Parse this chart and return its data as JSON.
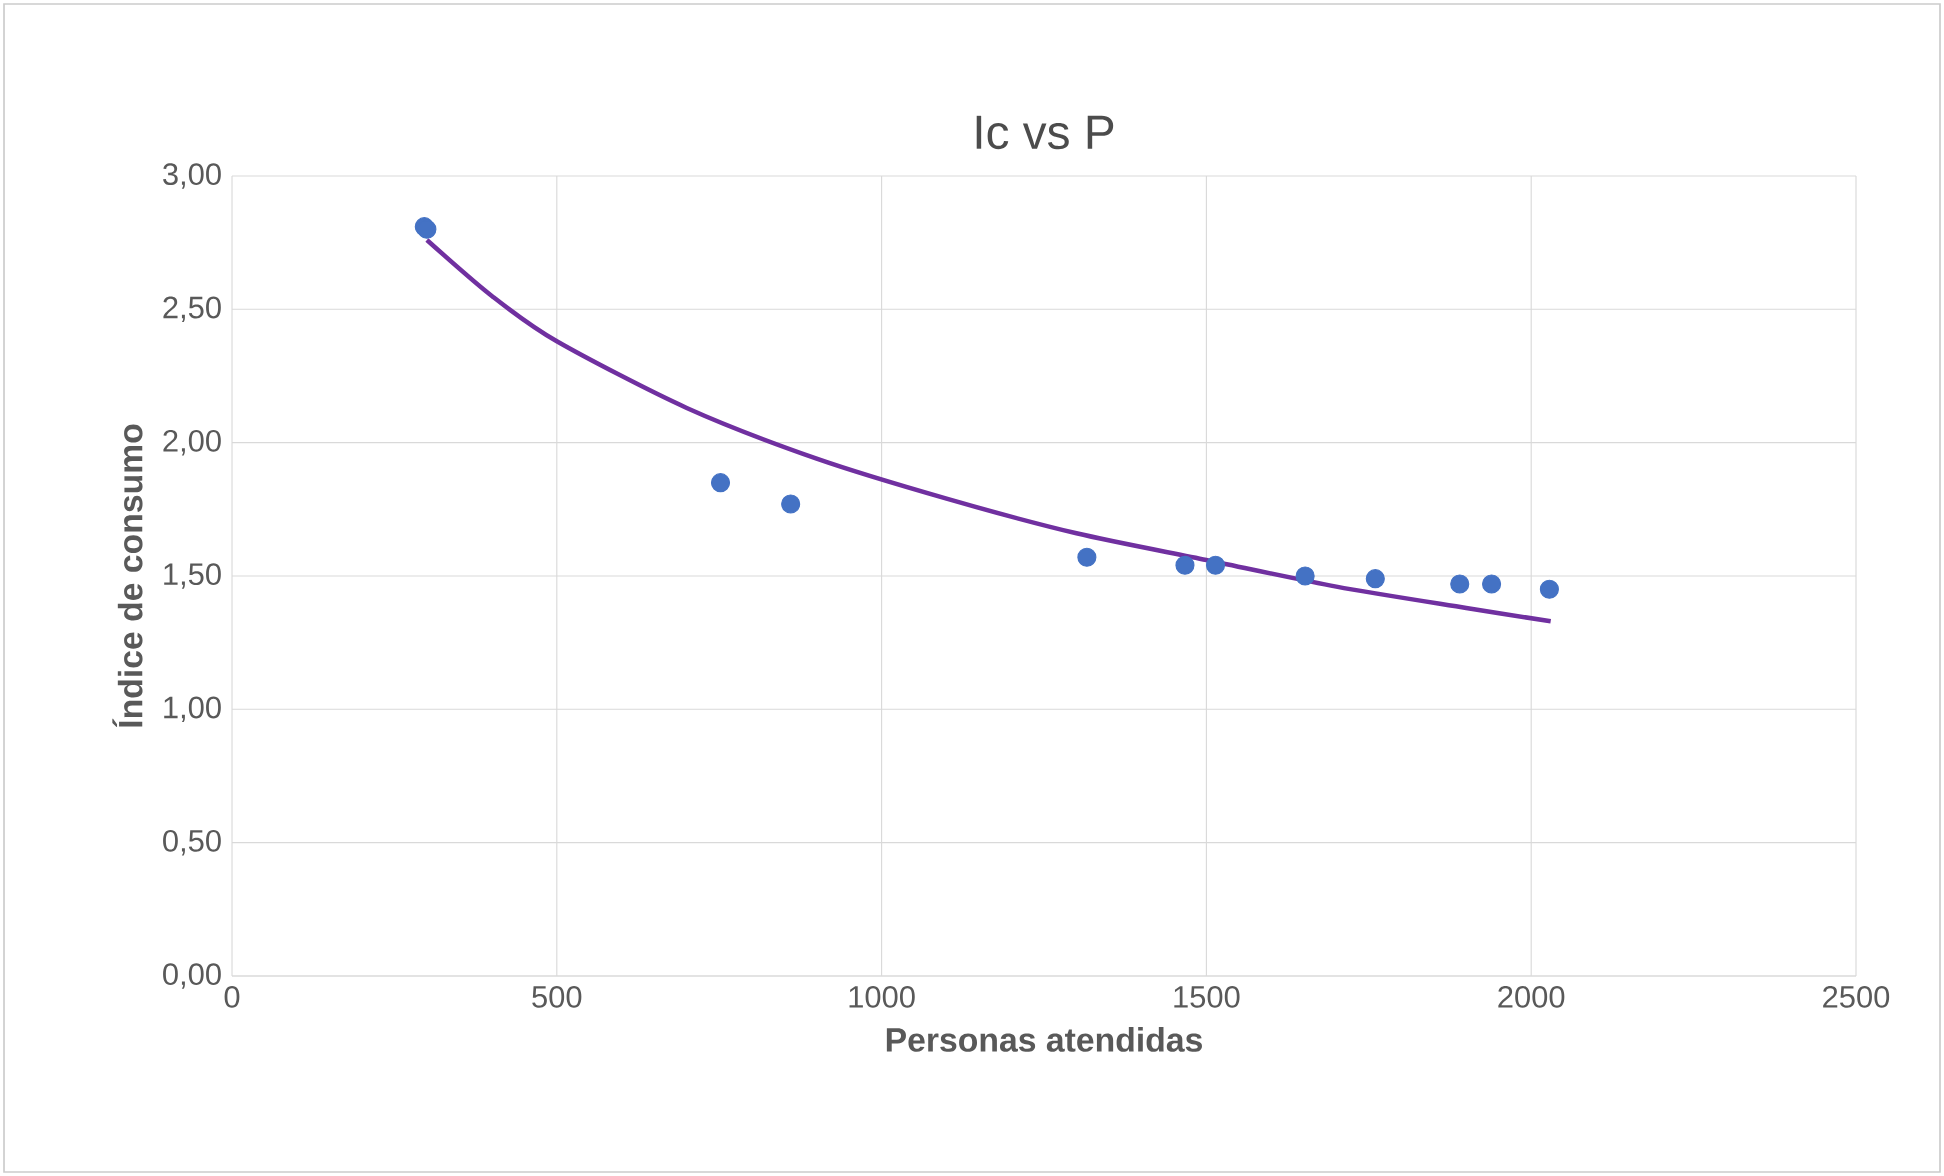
{
  "chart_data": {
    "type": "scatter",
    "title": "Ic vs P",
    "xlabel": "Personas atendidas",
    "ylabel": "Índice de consumo",
    "xlim": [
      0,
      2500
    ],
    "xticks": [
      0,
      500,
      1000,
      1500,
      2000,
      2500
    ],
    "ylim": [
      0,
      3
    ],
    "yticks": [
      {
        "value": 0,
        "label": "0,00"
      },
      {
        "value": 0.5,
        "label": "0,50"
      },
      {
        "value": 1,
        "label": "1,00"
      },
      {
        "value": 1.5,
        "label": "1,50"
      },
      {
        "value": 2,
        "label": "2,00"
      },
      {
        "value": 2.5,
        "label": "2,50"
      },
      {
        "value": 3,
        "label": "3,00"
      }
    ],
    "grid": true,
    "series": [
      {
        "type": "scatter",
        "color": "#4472c4",
        "marker": "circle",
        "x": [
          296,
          300,
          752,
          860,
          1316,
          1467,
          1514,
          1652,
          1760,
          1890,
          1939,
          2028
        ],
        "values": [
          2.81,
          2.8,
          1.85,
          1.77,
          1.57,
          1.54,
          1.54,
          1.5,
          1.49,
          1.47,
          1.47,
          1.45
        ]
      },
      {
        "type": "line",
        "color": "#7030a0",
        "x": [
          300,
          400,
          500,
          700,
          900,
          1100,
          1300,
          1500,
          1700,
          1900,
          2030
        ],
        "values": [
          2.76,
          2.55,
          2.38,
          2.13,
          1.94,
          1.79,
          1.66,
          1.56,
          1.46,
          1.38,
          1.33
        ]
      }
    ]
  }
}
